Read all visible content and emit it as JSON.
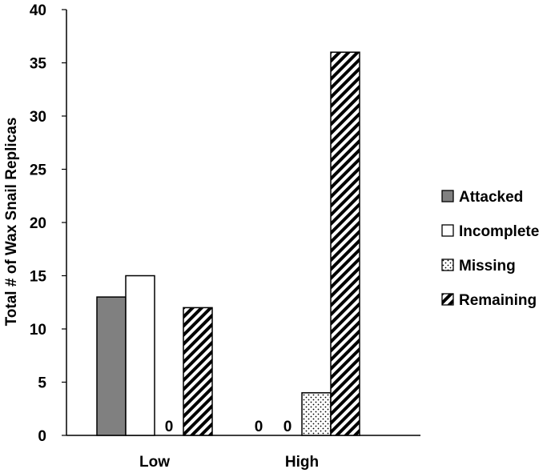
{
  "chart_data": {
    "type": "bar",
    "title": "",
    "xlabel": "",
    "ylabel": "Total # of Wax Snail Replicas",
    "categories": [
      "Low",
      "High"
    ],
    "ylim": [
      0,
      40
    ],
    "yticks": [
      0,
      5,
      10,
      15,
      20,
      25,
      30,
      35,
      40
    ],
    "grid": false,
    "legend_position": "right",
    "series": [
      {
        "name": "Attacked",
        "values": [
          13,
          0
        ],
        "pattern": "solid-gray",
        "color": "#808080"
      },
      {
        "name": "Incomplete",
        "values": [
          15,
          0
        ],
        "pattern": "empty",
        "color": "#ffffff"
      },
      {
        "name": "Missing",
        "values": [
          0,
          4
        ],
        "pattern": "dots",
        "color": "#ffffff"
      },
      {
        "name": "Remaining",
        "values": [
          12,
          36
        ],
        "pattern": "diagonal-stripes",
        "color": "#ffffff"
      }
    ],
    "zero_labels": [
      {
        "category": 0,
        "series": 2,
        "text": "0"
      },
      {
        "category": 1,
        "series": 0,
        "text": "0"
      },
      {
        "category": 1,
        "series": 1,
        "text": "0"
      }
    ]
  }
}
